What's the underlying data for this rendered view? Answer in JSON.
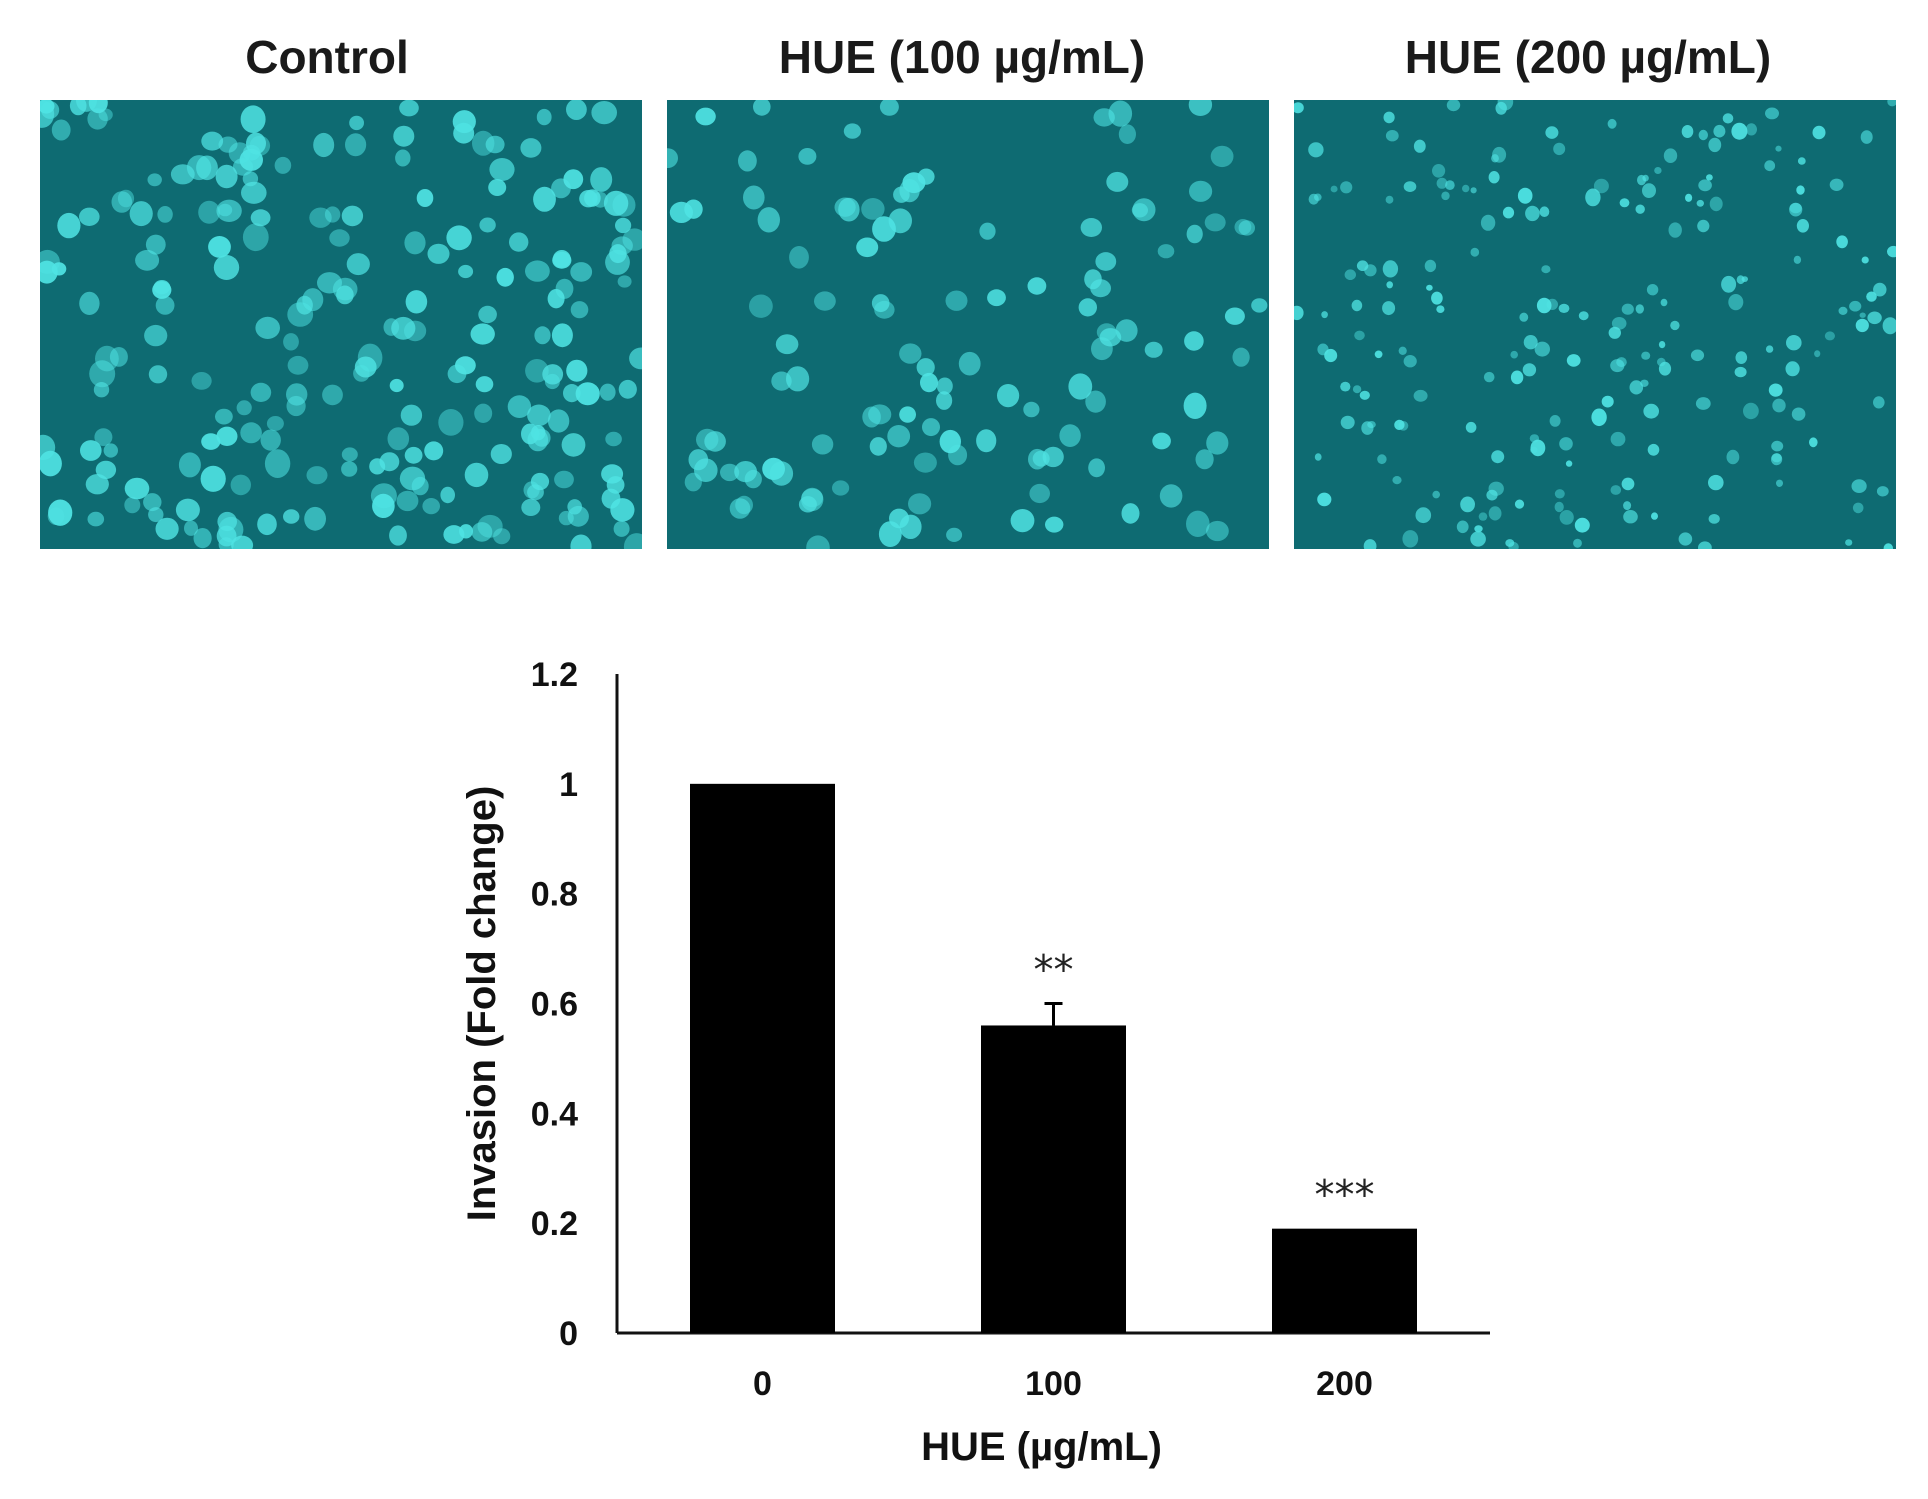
{
  "panels": [
    {
      "title": "Control"
    },
    {
      "title": "HUE (100 µg/mL)"
    },
    {
      "title": "HUE (200 µg/mL)"
    }
  ],
  "colors": {
    "micrograph_bg": "#0e6b72",
    "cell": "#4fe3e3",
    "bar": "#000000"
  },
  "chart_data": {
    "type": "bar",
    "categories": [
      "0",
      "100",
      "200"
    ],
    "values": [
      1.0,
      0.56,
      0.19
    ],
    "errors": [
      0.0,
      0.04,
      0.0
    ],
    "significance": [
      "",
      "**",
      "***"
    ],
    "title": "",
    "xlabel": "HUE (µg/mL)",
    "ylabel": "Invasion (Fold change)",
    "ylim": [
      0,
      1.2
    ],
    "yticks": [
      "0",
      "0.2",
      "0.4",
      "0.6",
      "0.8",
      "1",
      "1.2"
    ],
    "grid": false,
    "legend": "none"
  }
}
